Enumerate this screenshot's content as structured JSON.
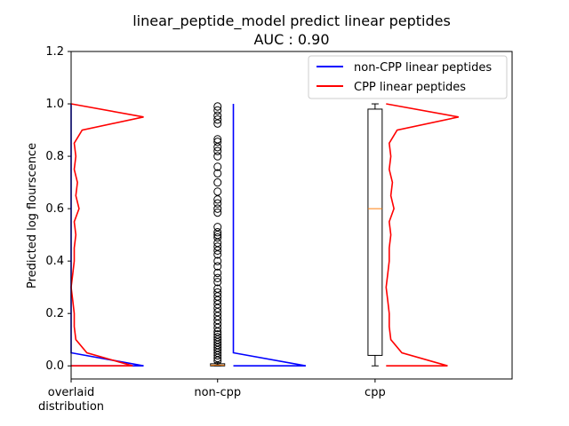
{
  "chart_data": {
    "type": "box",
    "title": "linear_peptide_model predict linear peptides",
    "subtitle": "AUC : 0.90",
    "xlabel": "",
    "ylabel": "Predicted log flourscence",
    "ylim": [
      -0.05,
      1.2
    ],
    "xlim": [
      0,
      2.8
    ],
    "grid": false,
    "legend_position": "top-right",
    "yticks": [
      "0.0",
      "0.2",
      "0.4",
      "0.6",
      "0.8",
      "1.0",
      "1.2"
    ],
    "xticks": [
      {
        "x": 0,
        "lines": [
          "overlaid",
          "distribution"
        ]
      },
      {
        "x": 0.93,
        "lines": [
          "non-cpp"
        ]
      },
      {
        "x": 1.93,
        "lines": [
          "cpp"
        ]
      }
    ],
    "series": [
      {
        "name": "non-CPP linear peptides",
        "color": "#0000ff"
      },
      {
        "name": "CPP linear peptides",
        "color": "#ff0000"
      }
    ],
    "boxes": [
      {
        "category": "non-cpp",
        "x": 0.93,
        "whisker_low": 0.0,
        "q1": 0.0,
        "median": 0.003,
        "q3": 0.008,
        "whisker_high": 0.012,
        "outliers": [
          0.99,
          0.975,
          0.955,
          0.94,
          0.925,
          0.865,
          0.855,
          0.835,
          0.82,
          0.8,
          0.76,
          0.735,
          0.7,
          0.665,
          0.635,
          0.62,
          0.6,
          0.585,
          0.53,
          0.51,
          0.5,
          0.49,
          0.47,
          0.455,
          0.44,
          0.425,
          0.4,
          0.38,
          0.355,
          0.335,
          0.32,
          0.295,
          0.28,
          0.265,
          0.25,
          0.235,
          0.22,
          0.205,
          0.19,
          0.175,
          0.16,
          0.145,
          0.13,
          0.12,
          0.11,
          0.1,
          0.09,
          0.08,
          0.07,
          0.06,
          0.05,
          0.04,
          0.03,
          0.02
        ]
      },
      {
        "category": "cpp",
        "x": 1.93,
        "whisker_low": 0.0,
        "q1": 0.04,
        "median": 0.6,
        "q3": 0.98,
        "whisker_high": 1.0,
        "outliers": []
      }
    ],
    "distributions": [
      {
        "name": "non-CPP linear peptides",
        "color": "#0000ff",
        "placement": "overlaid",
        "base_x": 0,
        "points": [
          [
            0.0,
            0.0
          ],
          [
            0.46,
            0.0
          ],
          [
            0.0,
            0.05
          ],
          [
            0.0,
            1.0
          ]
        ]
      },
      {
        "name": "non-CPP linear peptides",
        "color": "#0000ff",
        "placement": "non-cpp",
        "base_x": 1.03,
        "points": [
          [
            0.0,
            0.0
          ],
          [
            0.46,
            0.0
          ],
          [
            0.0,
            0.05
          ],
          [
            0.0,
            1.0
          ]
        ]
      },
      {
        "name": "CPP linear peptides",
        "color": "#ff0000",
        "placement": "overlaid",
        "base_x": 0,
        "points": [
          [
            0.0,
            0.0
          ],
          [
            0.39,
            0.0
          ],
          [
            0.1,
            0.05
          ],
          [
            0.03,
            0.1
          ],
          [
            0.02,
            0.15
          ],
          [
            0.02,
            0.2
          ],
          [
            0.01,
            0.25
          ],
          [
            0.0,
            0.3
          ],
          [
            0.01,
            0.35
          ],
          [
            0.02,
            0.4
          ],
          [
            0.02,
            0.45
          ],
          [
            0.03,
            0.5
          ],
          [
            0.02,
            0.55
          ],
          [
            0.05,
            0.6
          ],
          [
            0.03,
            0.65
          ],
          [
            0.04,
            0.7
          ],
          [
            0.02,
            0.75
          ],
          [
            0.03,
            0.8
          ],
          [
            0.02,
            0.85
          ],
          [
            0.07,
            0.9
          ],
          [
            0.46,
            0.95
          ],
          [
            0.0,
            1.0
          ]
        ]
      },
      {
        "name": "CPP linear peptides",
        "color": "#ff0000",
        "placement": "cpp",
        "base_x": 2.0,
        "points": [
          [
            0.0,
            0.0
          ],
          [
            0.39,
            0.0
          ],
          [
            0.1,
            0.05
          ],
          [
            0.03,
            0.1
          ],
          [
            0.02,
            0.15
          ],
          [
            0.02,
            0.2
          ],
          [
            0.01,
            0.25
          ],
          [
            0.0,
            0.3
          ],
          [
            0.01,
            0.35
          ],
          [
            0.02,
            0.4
          ],
          [
            0.02,
            0.45
          ],
          [
            0.03,
            0.5
          ],
          [
            0.02,
            0.55
          ],
          [
            0.05,
            0.6
          ],
          [
            0.03,
            0.65
          ],
          [
            0.04,
            0.7
          ],
          [
            0.02,
            0.75
          ],
          [
            0.03,
            0.8
          ],
          [
            0.02,
            0.85
          ],
          [
            0.07,
            0.9
          ],
          [
            0.46,
            0.95
          ],
          [
            0.0,
            1.0
          ]
        ]
      }
    ]
  }
}
